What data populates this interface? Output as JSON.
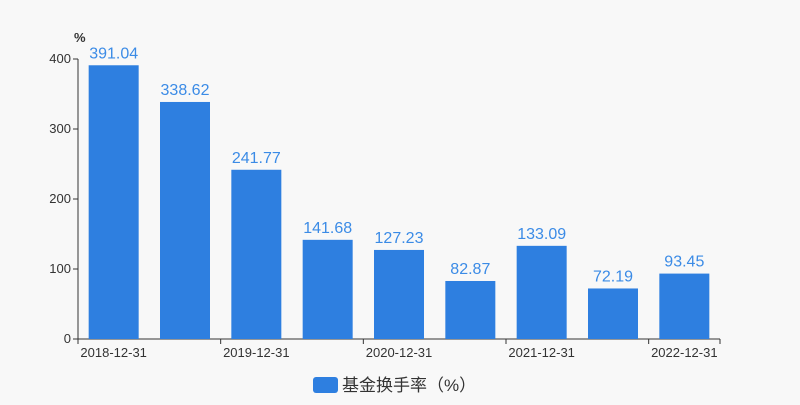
{
  "chart_data": {
    "type": "bar",
    "ylabel": "%",
    "ylim": [
      0,
      400
    ],
    "yticks": [
      0,
      100,
      200,
      300,
      400
    ],
    "categories": [
      "2018-12-31",
      "",
      "2019-12-31",
      "",
      "2020-12-31",
      "",
      "2021-12-31",
      "",
      "2022-12-31"
    ],
    "series": [
      {
        "name": "基金换手率（%）",
        "values": [
          391.04,
          338.62,
          241.77,
          141.68,
          127.23,
          82.87,
          133.09,
          72.19,
          93.45
        ],
        "color": "#2e7fe0"
      }
    ],
    "value_labels": [
      "391.04",
      "338.62",
      "241.77",
      "141.68",
      "127.23",
      "82.87",
      "133.09",
      "72.19",
      "93.45"
    ],
    "label_color": "#3b8be6",
    "legend_placement": "bottom",
    "grid": false
  }
}
